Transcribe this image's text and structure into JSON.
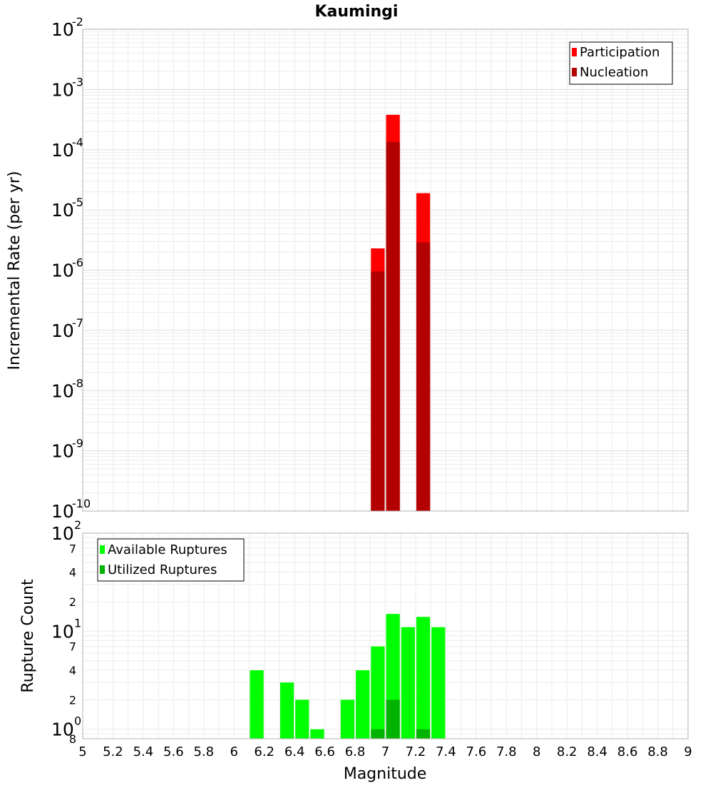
{
  "chart_data": [
    {
      "type": "bar",
      "title": "Kaumingi",
      "ylabel": "Incremental Rate (per yr)",
      "y_scale": "log",
      "ylim": [
        1e-10,
        0.01
      ],
      "xlim": [
        5,
        9
      ],
      "grid": true,
      "legend_position": "top-right",
      "bar_width": 0.1,
      "y_ticks": [
        {
          "base": "10",
          "exp": "-10"
        },
        {
          "base": "10",
          "exp": "-9"
        },
        {
          "base": "10",
          "exp": "-8"
        },
        {
          "base": "10",
          "exp": "-7"
        },
        {
          "base": "10",
          "exp": "-6"
        },
        {
          "base": "10",
          "exp": "-5"
        },
        {
          "base": "10",
          "exp": "-4"
        },
        {
          "base": "10",
          "exp": "-3"
        },
        {
          "base": "10",
          "exp": "-2"
        }
      ],
      "series": [
        {
          "name": "Participation",
          "color": "#ff0000",
          "points": [
            {
              "x": 6.95,
              "y": 2.3e-06
            },
            {
              "x": 7.05,
              "y": 0.00038
            },
            {
              "x": 7.25,
              "y": 1.9e-05
            }
          ]
        },
        {
          "name": "Nucleation",
          "color": "#b30000",
          "points": [
            {
              "x": 6.95,
              "y": 9.5e-07
            },
            {
              "x": 7.05,
              "y": 0.000135
            },
            {
              "x": 7.25,
              "y": 2.9e-06
            }
          ]
        }
      ]
    },
    {
      "type": "bar",
      "xlabel": "Magnitude",
      "ylabel": "Rupture Count",
      "y_scale": "log",
      "ylim": [
        0.8,
        100
      ],
      "xlim": [
        5,
        9
      ],
      "grid": true,
      "legend_position": "top-left",
      "bar_width": 0.1,
      "x_ticks": [
        "5",
        "5.2",
        "5.4",
        "5.6",
        "5.8",
        "6",
        "6.2",
        "6.4",
        "6.6",
        "6.8",
        "7",
        "7.2",
        "7.4",
        "7.6",
        "7.8",
        "8",
        "8.2",
        "8.4",
        "8.6",
        "8.8",
        "9"
      ],
      "y_major_ticks": [
        {
          "base": "10",
          "exp": "0"
        },
        {
          "base": "10",
          "exp": "1"
        },
        {
          "base": "10",
          "exp": "2"
        }
      ],
      "y_minor_ticks": [
        {
          "value": 0.8,
          "label": "8"
        },
        {
          "value": 2,
          "label": "2"
        },
        {
          "value": 4,
          "label": "4"
        },
        {
          "value": 7,
          "label": "7"
        },
        {
          "value": 20,
          "label": "2"
        },
        {
          "value": 40,
          "label": "4"
        },
        {
          "value": 70,
          "label": "7"
        }
      ],
      "series": [
        {
          "name": "Available Ruptures",
          "color": "#00ff00",
          "points": [
            {
              "x": 6.15,
              "y": 4
            },
            {
              "x": 6.35,
              "y": 3
            },
            {
              "x": 6.45,
              "y": 2
            },
            {
              "x": 6.55,
              "y": 1
            },
            {
              "x": 6.75,
              "y": 2
            },
            {
              "x": 6.85,
              "y": 4
            },
            {
              "x": 6.95,
              "y": 7
            },
            {
              "x": 7.05,
              "y": 15
            },
            {
              "x": 7.15,
              "y": 11
            },
            {
              "x": 7.25,
              "y": 14
            },
            {
              "x": 7.35,
              "y": 11
            }
          ]
        },
        {
          "name": "Utilized Ruptures",
          "color": "#00b300",
          "points": [
            {
              "x": 6.95,
              "y": 1
            },
            {
              "x": 7.05,
              "y": 2
            },
            {
              "x": 7.25,
              "y": 1
            }
          ]
        }
      ]
    }
  ]
}
